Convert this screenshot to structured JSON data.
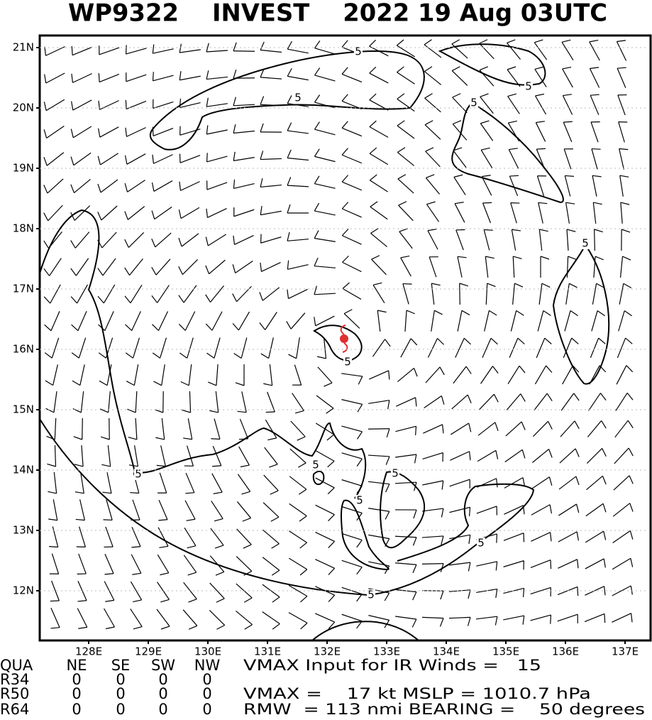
{
  "header": {
    "title": "WP9322    INVEST    2022 19 Aug 03UTC"
  },
  "map": {
    "lat_ticks": [
      {
        "value": 12,
        "label": "12N"
      },
      {
        "value": 13,
        "label": "13N"
      },
      {
        "value": 14,
        "label": "14N"
      },
      {
        "value": 15,
        "label": "15N"
      },
      {
        "value": 16,
        "label": "16N"
      },
      {
        "value": 17,
        "label": "17N"
      },
      {
        "value": 18,
        "label": "18N"
      },
      {
        "value": 19,
        "label": "19N"
      },
      {
        "value": 20,
        "label": "20N"
      },
      {
        "value": 21,
        "label": "21N"
      }
    ],
    "lon_ticks": [
      {
        "value": 128,
        "label": "128E"
      },
      {
        "value": 129,
        "label": "129E"
      },
      {
        "value": 130,
        "label": "130E"
      },
      {
        "value": 131,
        "label": "131E"
      },
      {
        "value": 132,
        "label": "132E"
      },
      {
        "value": 133,
        "label": "133E"
      },
      {
        "value": 134,
        "label": "134E"
      },
      {
        "value": 135,
        "label": "135E"
      },
      {
        "value": 136,
        "label": "136E"
      },
      {
        "value": 137,
        "label": "137E"
      }
    ],
    "contour_labels": [
      "5",
      "5",
      "5",
      "5",
      "5",
      "5",
      "5",
      "5",
      "5",
      "5",
      "5",
      "5"
    ]
  },
  "table": {
    "header": [
      "QUA",
      "NE",
      "SE",
      "SW",
      "NW"
    ],
    "rows": [
      [
        "R34",
        "0",
        "0",
        "0",
        "0"
      ],
      [
        "R50",
        "0",
        "0",
        "0",
        "0"
      ],
      [
        "R64",
        "0",
        "0",
        "0",
        "0"
      ]
    ],
    "info": [
      "VMAX Input for IR Winds =   15",
      "",
      "VMAX =    17 kt MSLP = 1010.7 hPa",
      "RMW  = 113 nmi BEARING =    50 degrees"
    ]
  }
}
